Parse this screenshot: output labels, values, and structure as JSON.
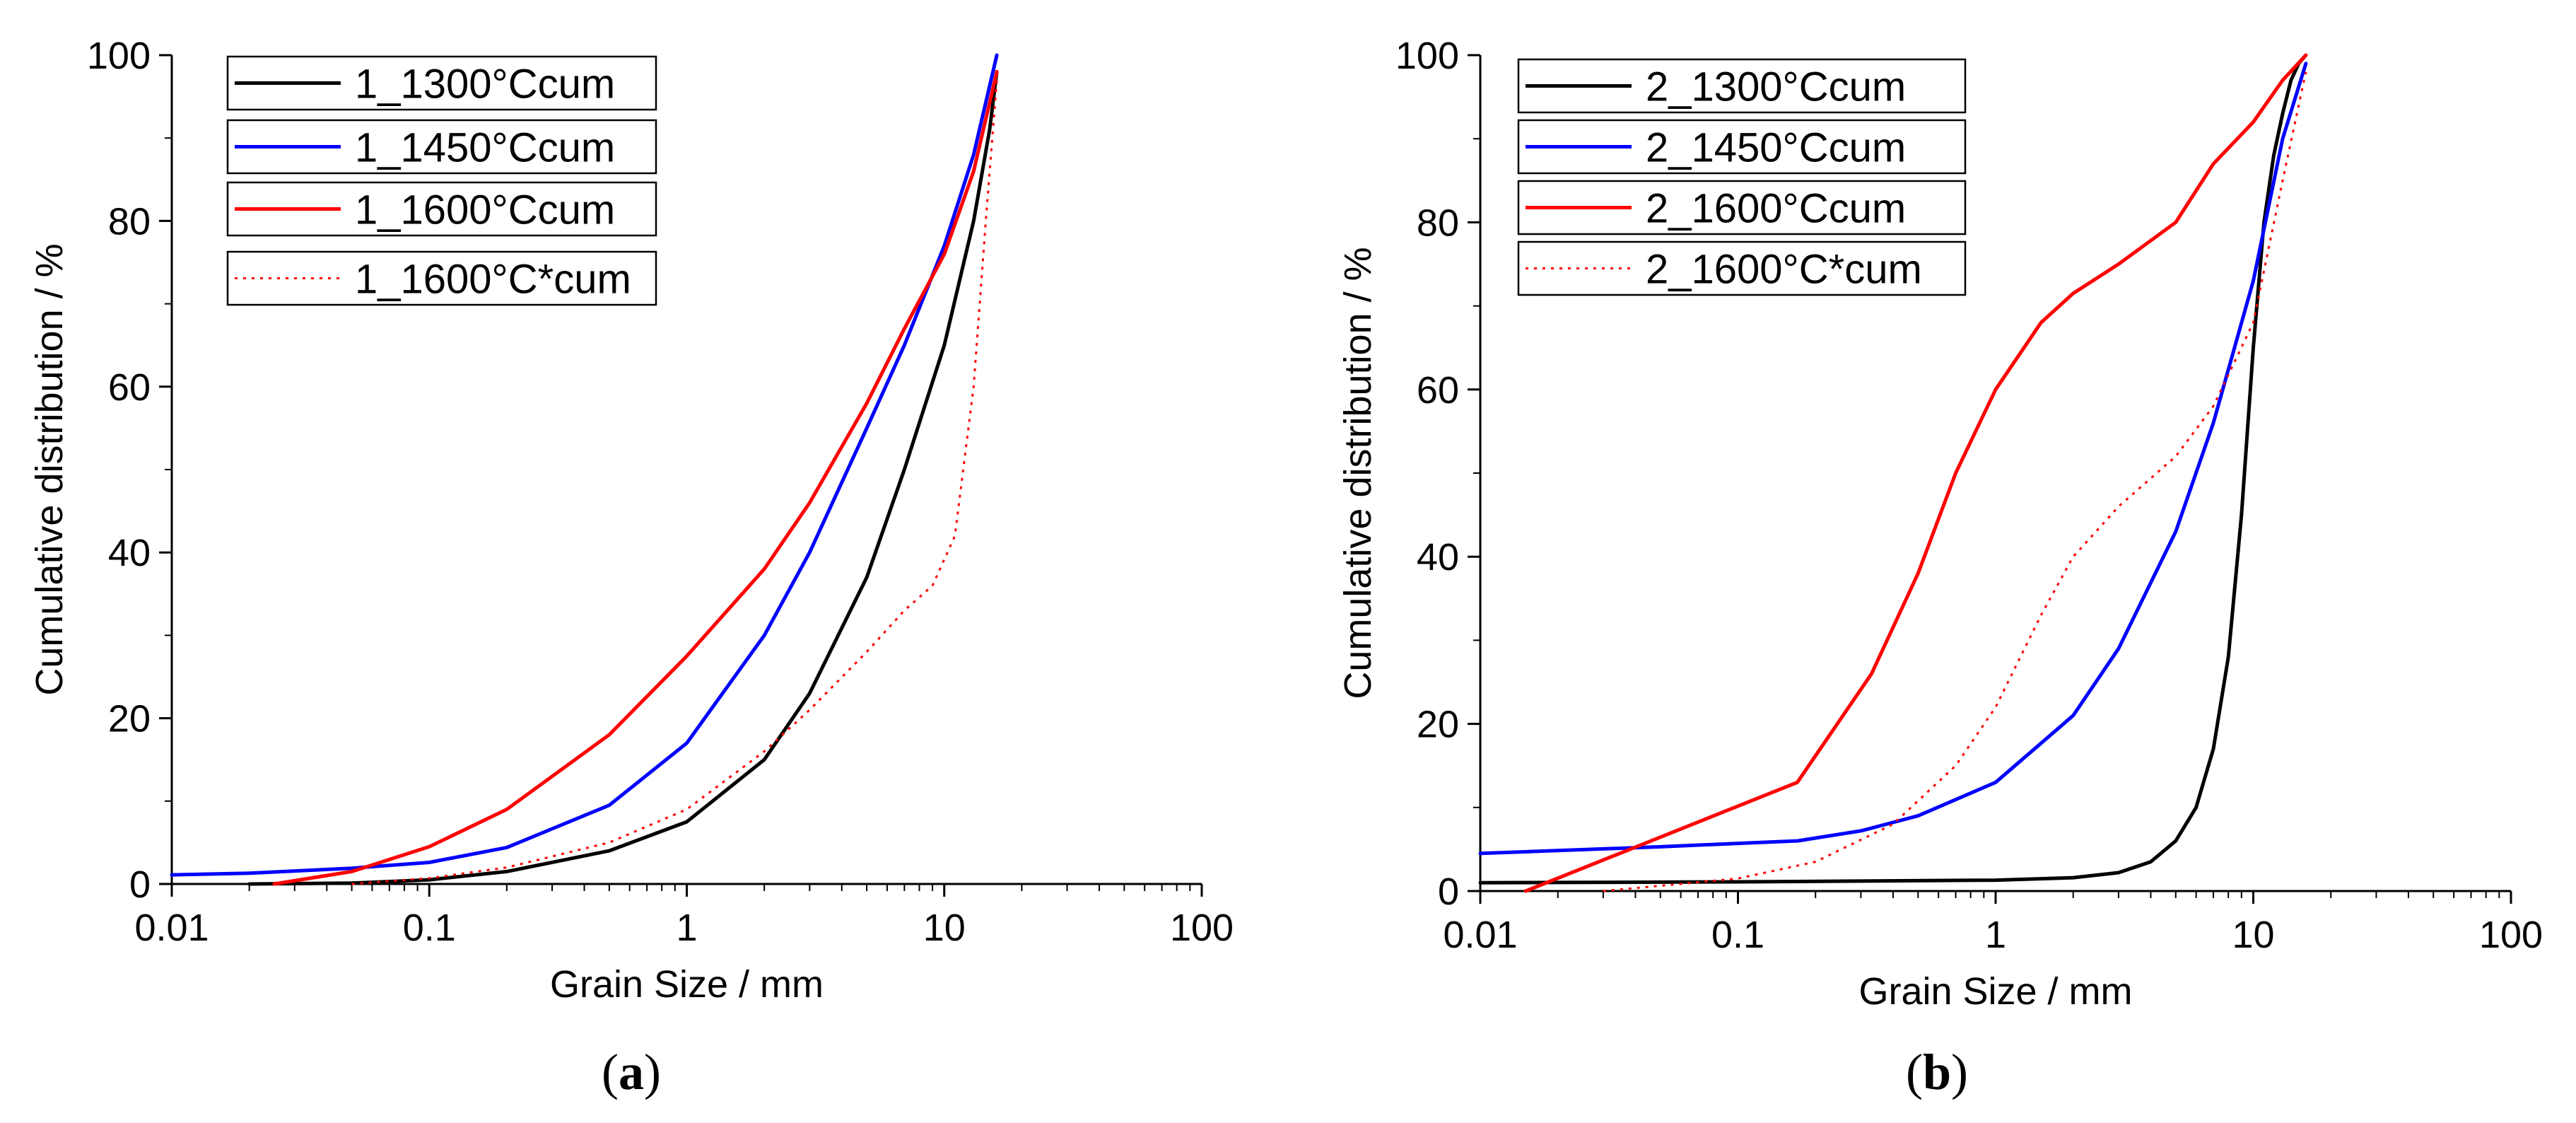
{
  "chart_data": [
    {
      "type": "line",
      "caption": {
        "open": "(",
        "letter": "a",
        "close": ")"
      },
      "xlabel": "Grain Size / mm",
      "ylabel": "Cumulative distribution / %",
      "xscale": "log",
      "xlim": [
        0.01,
        100
      ],
      "ylim": [
        0,
        100
      ],
      "xticks": [
        "0.01",
        "0.1",
        "1",
        "10",
        "100"
      ],
      "yticks": [
        "0",
        "20",
        "40",
        "60",
        "80",
        "100"
      ],
      "legend_position": "top-left",
      "series": [
        {
          "name": "1_1300°Ccum",
          "color": "#000000",
          "style": "solid",
          "points": [
            [
              0.02,
              0
            ],
            [
              0.05,
              0.1
            ],
            [
              0.1,
              0.5
            ],
            [
              0.2,
              1.5
            ],
            [
              0.5,
              4
            ],
            [
              1,
              7.5
            ],
            [
              2,
              15
            ],
            [
              3,
              23
            ],
            [
              5,
              37
            ],
            [
              7,
              50
            ],
            [
              10,
              65
            ],
            [
              13,
              80
            ],
            [
              15,
              91
            ],
            [
              16,
              98
            ]
          ]
        },
        {
          "name": "1_1450°Ccum",
          "color": "#0000ff",
          "style": "solid",
          "points": [
            [
              0.01,
              1.1
            ],
            [
              0.02,
              1.3
            ],
            [
              0.05,
              1.9
            ],
            [
              0.1,
              2.6
            ],
            [
              0.2,
              4.4
            ],
            [
              0.5,
              9.5
            ],
            [
              1,
              17
            ],
            [
              2,
              30
            ],
            [
              3,
              40
            ],
            [
              5,
              55
            ],
            [
              7,
              65
            ],
            [
              10,
              77
            ],
            [
              13,
              88
            ],
            [
              16,
              100
            ]
          ]
        },
        {
          "name": "1_1600°Ccum",
          "color": "#ff0000",
          "style": "solid",
          "points": [
            [
              0.025,
              0
            ],
            [
              0.05,
              1.5
            ],
            [
              0.1,
              4.5
            ],
            [
              0.2,
              9
            ],
            [
              0.5,
              18
            ],
            [
              1,
              27.5
            ],
            [
              2,
              38
            ],
            [
              3,
              46
            ],
            [
              5,
              58
            ],
            [
              7,
              67
            ],
            [
              10,
              76
            ],
            [
              13,
              86
            ],
            [
              16,
              98
            ]
          ]
        },
        {
          "name": "1_1600°C*cum",
          "color": "#ff0000",
          "style": "dotted",
          "points": [
            [
              0.05,
              0
            ],
            [
              0.1,
              0.7
            ],
            [
              0.2,
              2
            ],
            [
              0.5,
              5
            ],
            [
              1,
              9
            ],
            [
              2,
              16
            ],
            [
              3,
              21
            ],
            [
              5,
              28
            ],
            [
              7,
              33
            ],
            [
              9,
              36
            ],
            [
              11,
              42
            ],
            [
              13,
              60
            ],
            [
              14.5,
              80
            ],
            [
              16,
              97
            ]
          ]
        }
      ]
    },
    {
      "type": "line",
      "caption": {
        "open": "(",
        "letter": "b",
        "close": ")"
      },
      "xlabel": "Grain Size / mm",
      "ylabel": "Cumulative distribution / %",
      "xscale": "log",
      "xlim": [
        0.01,
        100
      ],
      "ylim": [
        0,
        100
      ],
      "xticks": [
        "0.01",
        "0.1",
        "1",
        "10",
        "100"
      ],
      "yticks": [
        "0",
        "20",
        "40",
        "60",
        "80",
        "100"
      ],
      "legend_position": "top-left",
      "series": [
        {
          "name": "2_1300°Ccum",
          "color": "#000000",
          "style": "solid",
          "points": [
            [
              0.01,
              1
            ],
            [
              0.1,
              1.1
            ],
            [
              1,
              1.3
            ],
            [
              2,
              1.6
            ],
            [
              3,
              2.2
            ],
            [
              4,
              3.5
            ],
            [
              5,
              6
            ],
            [
              6,
              10
            ],
            [
              7,
              17
            ],
            [
              8,
              28
            ],
            [
              9,
              45
            ],
            [
              10,
              65
            ],
            [
              11,
              80
            ],
            [
              12,
              88
            ],
            [
              13,
              93
            ],
            [
              14,
              97
            ],
            [
              15,
              99
            ],
            [
              16,
              100
            ]
          ]
        },
        {
          "name": "2_1450°Ccum",
          "color": "#0000ff",
          "style": "solid",
          "points": [
            [
              0.01,
              4.5
            ],
            [
              0.05,
              5.3
            ],
            [
              0.1,
              5.7
            ],
            [
              0.17,
              6
            ],
            [
              0.3,
              7.2
            ],
            [
              0.5,
              9
            ],
            [
              1,
              13
            ],
            [
              2,
              21
            ],
            [
              3,
              29
            ],
            [
              5,
              43
            ],
            [
              7,
              56
            ],
            [
              10,
              73
            ],
            [
              13,
              90
            ],
            [
              16,
              99
            ]
          ]
        },
        {
          "name": "2_1600°Ccum",
          "color": "#ff0000",
          "style": "solid",
          "points": [
            [
              0.015,
              0
            ],
            [
              0.17,
              13
            ],
            [
              0.33,
              26
            ],
            [
              0.5,
              38
            ],
            [
              0.7,
              50
            ],
            [
              1,
              60
            ],
            [
              1.5,
              68
            ],
            [
              2,
              71.5
            ],
            [
              3,
              75
            ],
            [
              5,
              80
            ],
            [
              7,
              87
            ],
            [
              10,
              92
            ],
            [
              13,
              97
            ],
            [
              16,
              100
            ]
          ]
        },
        {
          "name": "2_1600°C*cum",
          "color": "#ff0000",
          "style": "dotted",
          "points": [
            [
              0.03,
              0
            ],
            [
              0.1,
              1.5
            ],
            [
              0.2,
              3.5
            ],
            [
              0.4,
              8
            ],
            [
              0.7,
              15
            ],
            [
              1,
              22
            ],
            [
              1.5,
              33
            ],
            [
              2,
              40
            ],
            [
              3,
              46
            ],
            [
              5,
              52
            ],
            [
              7,
              58
            ],
            [
              10,
              68
            ],
            [
              13,
              85
            ],
            [
              16,
              98
            ]
          ]
        }
      ]
    }
  ]
}
